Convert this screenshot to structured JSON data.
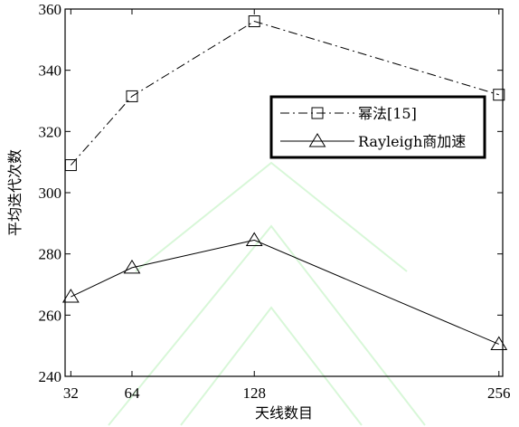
{
  "chart_data": {
    "type": "line",
    "xlabel": "天线数目",
    "ylabel": "平均迭代次数",
    "x": [
      32,
      64,
      128,
      256
    ],
    "x_tick_labels": [
      "32",
      "64",
      "128",
      "256"
    ],
    "xlim": [
      29,
      258
    ],
    "ylim": [
      240,
      360
    ],
    "y_ticks": [
      240,
      260,
      280,
      300,
      320,
      340,
      360
    ],
    "y_tick_labels": [
      "240",
      "260",
      "280",
      "300",
      "320",
      "340",
      "360"
    ],
    "grid": false,
    "legend_position": "top-right",
    "series": [
      {
        "name": "幂法[15]",
        "values": [
          309,
          331.5,
          356,
          332
        ],
        "line_style": "dash-dot",
        "marker": "square",
        "color": "#000000"
      },
      {
        "name": "Rayleigh商加速",
        "values": [
          266,
          275.5,
          284.5,
          250.5
        ],
        "line_style": "solid",
        "marker": "triangle",
        "color": "#000000"
      }
    ]
  }
}
